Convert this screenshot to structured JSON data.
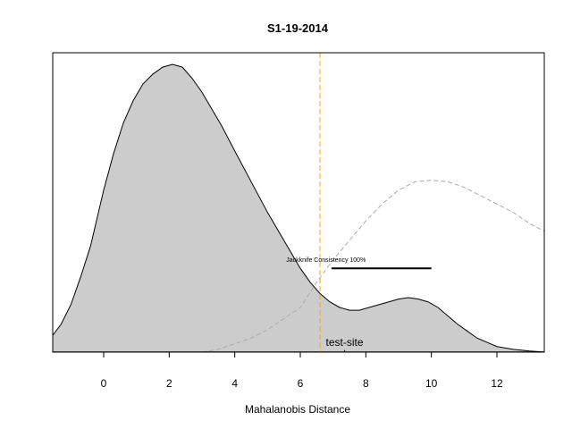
{
  "chart_data": {
    "type": "area",
    "title": "S1-19-2014",
    "xlabel": "Mahalanobis Distance",
    "ylabel": "",
    "xlim": [
      -1.6,
      13.5
    ],
    "ylim": [
      0,
      1
    ],
    "x_ticks": [
      0,
      2,
      4,
      6,
      8,
      10,
      12
    ],
    "x_tick_labels": [
      "0",
      "2",
      "4",
      "6",
      "8",
      "10",
      "12"
    ],
    "grid": false,
    "series": [
      {
        "style": "filled-density",
        "fill": "#cccccc",
        "stroke": "#000000",
        "x": [
          -1.6,
          -1.3,
          -1.0,
          -0.7,
          -0.4,
          -0.2,
          0.0,
          0.3,
          0.6,
          0.9,
          1.2,
          1.5,
          1.8,
          2.1,
          2.4,
          2.7,
          3.0,
          3.3,
          3.6,
          4.0,
          4.5,
          5.0,
          5.5,
          6.0,
          6.3,
          6.6,
          6.9,
          7.2,
          7.5,
          7.8,
          8.1,
          8.4,
          8.7,
          9.0,
          9.3,
          9.6,
          9.9,
          10.2,
          10.5,
          10.8,
          11.1,
          11.4,
          11.7,
          12.0,
          12.5,
          13.0,
          13.5
        ],
        "y": [
          0.053,
          0.1,
          0.17,
          0.27,
          0.38,
          0.48,
          0.58,
          0.71,
          0.82,
          0.9,
          0.96,
          0.995,
          1.02,
          1.03,
          1.02,
          0.98,
          0.93,
          0.87,
          0.81,
          0.72,
          0.61,
          0.5,
          0.4,
          0.3,
          0.25,
          0.21,
          0.18,
          0.16,
          0.15,
          0.15,
          0.16,
          0.17,
          0.18,
          0.19,
          0.195,
          0.19,
          0.18,
          0.16,
          0.13,
          0.1,
          0.075,
          0.05,
          0.035,
          0.02,
          0.01,
          0.004,
          0.0
        ]
      },
      {
        "style": "dashed-reference",
        "stroke": "#aaaaaa",
        "x": [
          3.0,
          3.5,
          4.0,
          4.5,
          5.0,
          5.5,
          6.0,
          6.5,
          7.0,
          7.5,
          8.0,
          8.5,
          9.0,
          9.5,
          10.0,
          10.5,
          11.0,
          11.5,
          12.0,
          12.5,
          13.0,
          13.5
        ],
        "y": [
          0.0,
          0.01,
          0.03,
          0.05,
          0.08,
          0.12,
          0.16,
          0.25,
          0.33,
          0.4,
          0.47,
          0.53,
          0.58,
          0.61,
          0.615,
          0.61,
          0.59,
          0.56,
          0.53,
          0.5,
          0.46,
          0.43
        ]
      }
    ],
    "reference_line": {
      "x": 6.6,
      "color": "#ffa500",
      "style": "dashed"
    },
    "jackknife": {
      "label": "Jackknife Consistency 100%",
      "x_start": 6.95,
      "x_end": 10.0,
      "y": 0.3
    },
    "site_marker": {
      "label": "test-site",
      "x": 7.35,
      "y": 0.0,
      "symbol": "★"
    },
    "baseline_y": 0.0
  }
}
